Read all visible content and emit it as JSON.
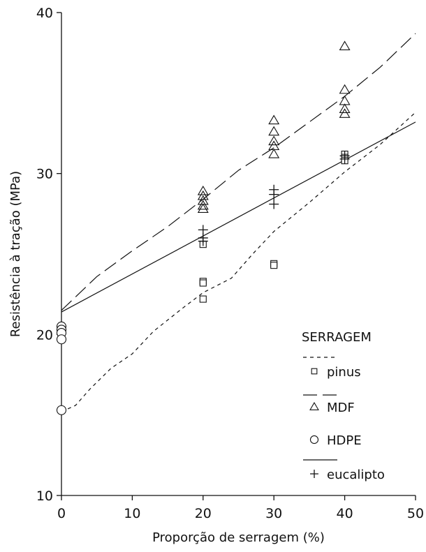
{
  "chart_data": {
    "type": "scatter",
    "title": "",
    "xlabel": "Proporção de serragem (%)",
    "ylabel": "Resistência à tração (MPa)",
    "xlim": [
      0,
      50
    ],
    "ylim": [
      10,
      40
    ],
    "x_ticks": [
      "0",
      "10",
      "20",
      "30",
      "40",
      "50"
    ],
    "y_ticks": [
      "10",
      "20",
      "30",
      "40"
    ],
    "grid": false,
    "legend": {
      "title": "SERRAGEM",
      "placement": "bottom-right",
      "entries": [
        {
          "label": "pinus",
          "marker": "square",
          "line": "dotted"
        },
        {
          "label": "MDF",
          "marker": "triangle",
          "line": "dashed"
        },
        {
          "label": "HDPE",
          "marker": "circle",
          "line": "none"
        },
        {
          "label": "eucalipto",
          "marker": "plus",
          "line": "solid"
        }
      ]
    },
    "series": [
      {
        "name": "pinus",
        "marker": "square",
        "points": [
          [
            20,
            25.6
          ],
          [
            20,
            23.3
          ],
          [
            20,
            23.2
          ],
          [
            20,
            22.2
          ],
          [
            30,
            24.4
          ],
          [
            30,
            24.3
          ],
          [
            40,
            31.2
          ],
          [
            40,
            31.0
          ],
          [
            40,
            30.8
          ]
        ],
        "fit": {
          "style": "dotted",
          "points": [
            [
              0,
              15.2
            ],
            [
              2,
              15.6
            ],
            [
              4,
              16.6
            ],
            [
              7,
              17.9
            ],
            [
              10,
              18.8
            ],
            [
              13,
              20.2
            ],
            [
              17,
              21.6
            ],
            [
              20,
              22.6
            ],
            [
              24,
              23.5
            ],
            [
              27,
              25.0
            ],
            [
              30,
              26.4
            ],
            [
              35,
              28.2
            ],
            [
              40,
              30.1
            ],
            [
              45,
              31.8
            ],
            [
              50,
              33.8
            ]
          ]
        }
      },
      {
        "name": "MDF",
        "marker": "triangle",
        "points": [
          [
            20,
            28.9
          ],
          [
            20,
            28.6
          ],
          [
            20,
            28.3
          ],
          [
            20,
            28.0
          ],
          [
            20,
            27.8
          ],
          [
            30,
            33.3
          ],
          [
            30,
            32.6
          ],
          [
            30,
            32.0
          ],
          [
            30,
            31.7
          ],
          [
            30,
            31.2
          ],
          [
            40,
            37.9
          ],
          [
            40,
            35.2
          ],
          [
            40,
            34.5
          ],
          [
            40,
            34.0
          ],
          [
            40,
            33.7
          ]
        ],
        "fit": {
          "style": "dashed",
          "points": [
            [
              0,
              21.5
            ],
            [
              5,
              23.6
            ],
            [
              10,
              25.2
            ],
            [
              15,
              26.7
            ],
            [
              20,
              28.4
            ],
            [
              25,
              30.2
            ],
            [
              30,
              31.6
            ],
            [
              35,
              33.2
            ],
            [
              40,
              34.8
            ],
            [
              45,
              36.6
            ],
            [
              50,
              38.7
            ]
          ]
        }
      },
      {
        "name": "HDPE",
        "marker": "circle",
        "points": [
          [
            0,
            20.5
          ],
          [
            0,
            20.3
          ],
          [
            0,
            20.1
          ],
          [
            0,
            19.7
          ],
          [
            0,
            15.3
          ]
        ],
        "fit": null
      },
      {
        "name": "eucalipto",
        "marker": "plus",
        "points": [
          [
            20,
            26.5
          ],
          [
            20,
            26.0
          ],
          [
            20,
            25.8
          ],
          [
            30,
            29.0
          ],
          [
            30,
            28.7
          ],
          [
            30,
            28.1
          ],
          [
            40,
            31.1
          ],
          [
            40,
            30.9
          ]
        ],
        "fit": {
          "style": "solid",
          "points": [
            [
              0,
              21.4
            ],
            [
              50,
              33.2
            ]
          ]
        }
      }
    ]
  }
}
